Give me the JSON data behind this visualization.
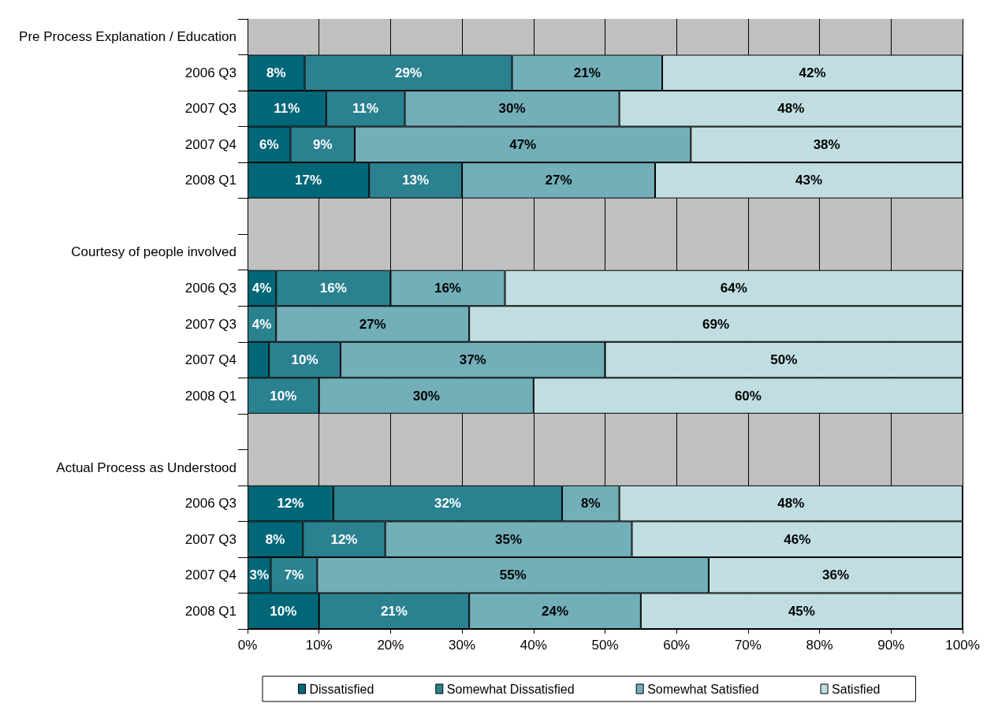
{
  "chart_data": {
    "type": "bar",
    "orientation": "horizontal",
    "stacked": true,
    "categories": [
      "Pre Process Explanation / Education",
      "2006 Q3",
      "2007 Q3",
      "2007 Q4",
      "2008 Q1",
      null,
      "Courtesy of people involved",
      "2006 Q3",
      "2007 Q3",
      "2007 Q4",
      "2008 Q1",
      null,
      "Actual Process as Understood",
      "2006 Q3",
      "2007 Q3",
      "2007 Q4",
      "2008 Q1"
    ],
    "series": [
      {
        "name": "Dissatisfied",
        "color": "#006778",
        "values": [
          null,
          8,
          11,
          6,
          17,
          null,
          null,
          4,
          null,
          3,
          null,
          null,
          null,
          12,
          7.75,
          3.25,
          10
        ],
        "value_labels": [
          null,
          "8%",
          "11%",
          "6%",
          "17%",
          null,
          null,
          "4%",
          null,
          null,
          null,
          null,
          null,
          "12%",
          "8%",
          "3%",
          "10%"
        ]
      },
      {
        "name": "Somewhat Dissatisfied",
        "color": "#2a8190",
        "values": [
          null,
          29,
          11,
          9,
          13,
          null,
          null,
          16,
          4,
          10,
          10,
          null,
          null,
          32,
          11.5,
          6.5,
          21
        ],
        "value_labels": [
          null,
          "29%",
          "11%",
          "9%",
          "13%",
          null,
          null,
          "16%",
          "4%",
          "10%",
          "10%",
          null,
          null,
          "32%",
          "12%",
          "7%",
          "21%"
        ]
      },
      {
        "name": "Somewhat Satisfied",
        "color": "#72afb9",
        "values": [
          null,
          21,
          30,
          47,
          27,
          null,
          null,
          16,
          27,
          37,
          30,
          null,
          null,
          8,
          34.5,
          54.75,
          24
        ],
        "value_labels": [
          null,
          "21%",
          "30%",
          "47%",
          "27%",
          null,
          null,
          "16%",
          "27%",
          "37%",
          "30%",
          null,
          null,
          "8%",
          "35%",
          "55%",
          "24%"
        ]
      },
      {
        "name": "Satisfied",
        "color": "#c0dee2",
        "values": [
          null,
          42,
          48,
          38,
          43,
          null,
          null,
          64,
          69,
          50,
          60,
          null,
          null,
          48,
          46.25,
          35.5,
          45
        ],
        "value_labels": [
          null,
          "42%",
          "48%",
          "38%",
          "43%",
          null,
          null,
          "64%",
          "69%",
          "50%",
          "60%",
          null,
          null,
          "48%",
          "46%",
          "36%",
          "45%"
        ]
      }
    ],
    "xlim": [
      0,
      100
    ],
    "xticks": [
      {
        "value": 0,
        "label": "0%"
      },
      {
        "value": 10,
        "label": "10%"
      },
      {
        "value": 20,
        "label": "20%"
      },
      {
        "value": 30,
        "label": "30%"
      },
      {
        "value": 40,
        "label": "40%"
      },
      {
        "value": 50,
        "label": "50%"
      },
      {
        "value": 60,
        "label": "60%"
      },
      {
        "value": 70,
        "label": "70%"
      },
      {
        "value": 80,
        "label": "80%"
      },
      {
        "value": 90,
        "label": "90%"
      },
      {
        "value": 100,
        "label": "100%"
      }
    ],
    "grid": "x",
    "legend": "bottom"
  }
}
